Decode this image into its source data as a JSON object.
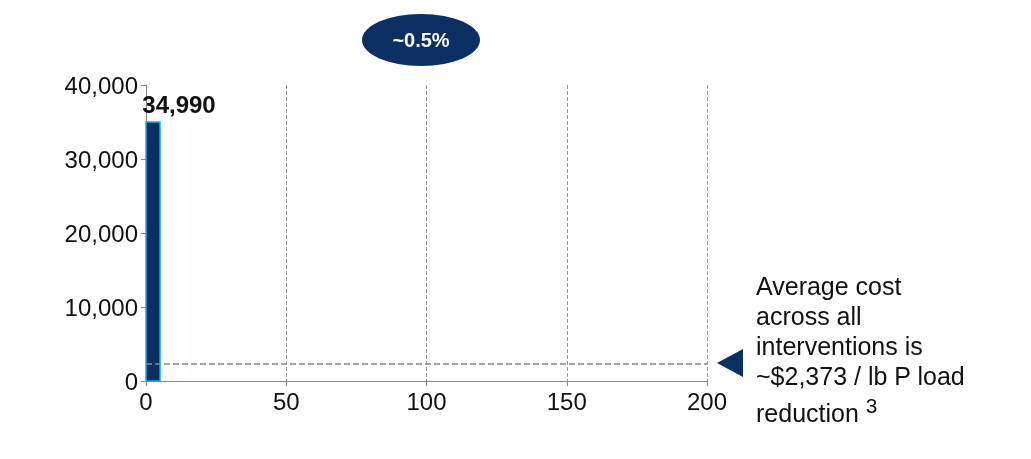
{
  "chart_data": {
    "type": "histogram",
    "bins": [
      0,
      5
    ],
    "values": [
      34990
    ],
    "value_labels": [
      "34,990"
    ],
    "color": "#0b2f63",
    "xlim": [
      0,
      200
    ],
    "xticks": [
      0,
      50,
      100,
      150,
      200
    ],
    "ylim": [
      0,
      40000
    ],
    "yticks": [
      0,
      {
        "value": 10000,
        "label": "10,000"
      },
      {
        "value": 20000,
        "label": "20,000"
      },
      {
        "value": 30000,
        "label": "30,000"
      },
      {
        "value": 40000,
        "label": "40,000"
      }
    ],
    "grid": "x",
    "ref_lines": [
      {
        "axis": "y",
        "value": 2373,
        "label": "Average cost across all interventions is ~$2,373 / lb P load reduction $^{3}$",
        "color": "#888888",
        "line_style": "dashed"
      }
    ],
    "annotations": [
      "~0.5%"
    ]
  }
}
